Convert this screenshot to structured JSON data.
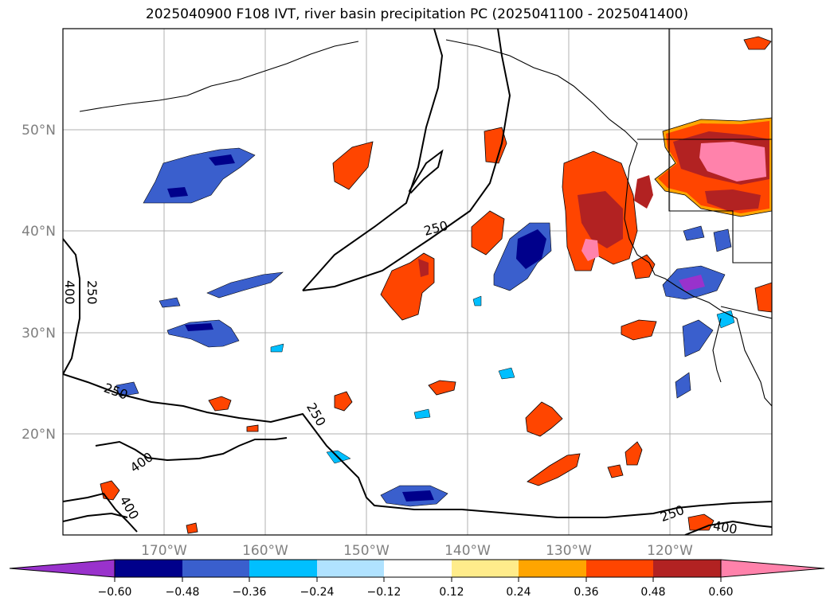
{
  "title": "2025040900 F108 IVT, river basin precipitation PC (2025041100 - 2025041400)",
  "lat_labels": [
    "50°N",
    "40°N",
    "30°N",
    "20°N"
  ],
  "lon_labels": [
    "170°W",
    "160°W",
    "150°W",
    "140°W",
    "130°W",
    "120°W"
  ],
  "contour_labels": [
    "250",
    "250",
    "250",
    "400",
    "250",
    "400",
    "400",
    "250",
    "400"
  ],
  "colorbar": {
    "ticks": [
      "−0.60",
      "−0.48",
      "−0.36",
      "−0.24",
      "−0.12",
      "0.12",
      "0.24",
      "0.36",
      "0.48",
      "0.60"
    ],
    "colors": [
      "#9932cc",
      "#00008b",
      "#3a5fcd",
      "#00bfff",
      "#b0e2ff",
      "#ffffff",
      "#ffec8b",
      "#ffa500",
      "#ff4500",
      "#b22222",
      "#ff82ab"
    ]
  },
  "colors": {
    "pos_red": "#ff4500",
    "pos_dark": "#b22222",
    "pos_pink": "#ff82ab",
    "pos_orange": "#ffa500",
    "pos_yellow": "#ffec8b",
    "neg_purple": "#9932cc",
    "neg_navy": "#00008b",
    "neg_blue": "#3a5fcd",
    "neg_sky": "#00bfff",
    "neg_light": "#b0e2ff"
  }
}
